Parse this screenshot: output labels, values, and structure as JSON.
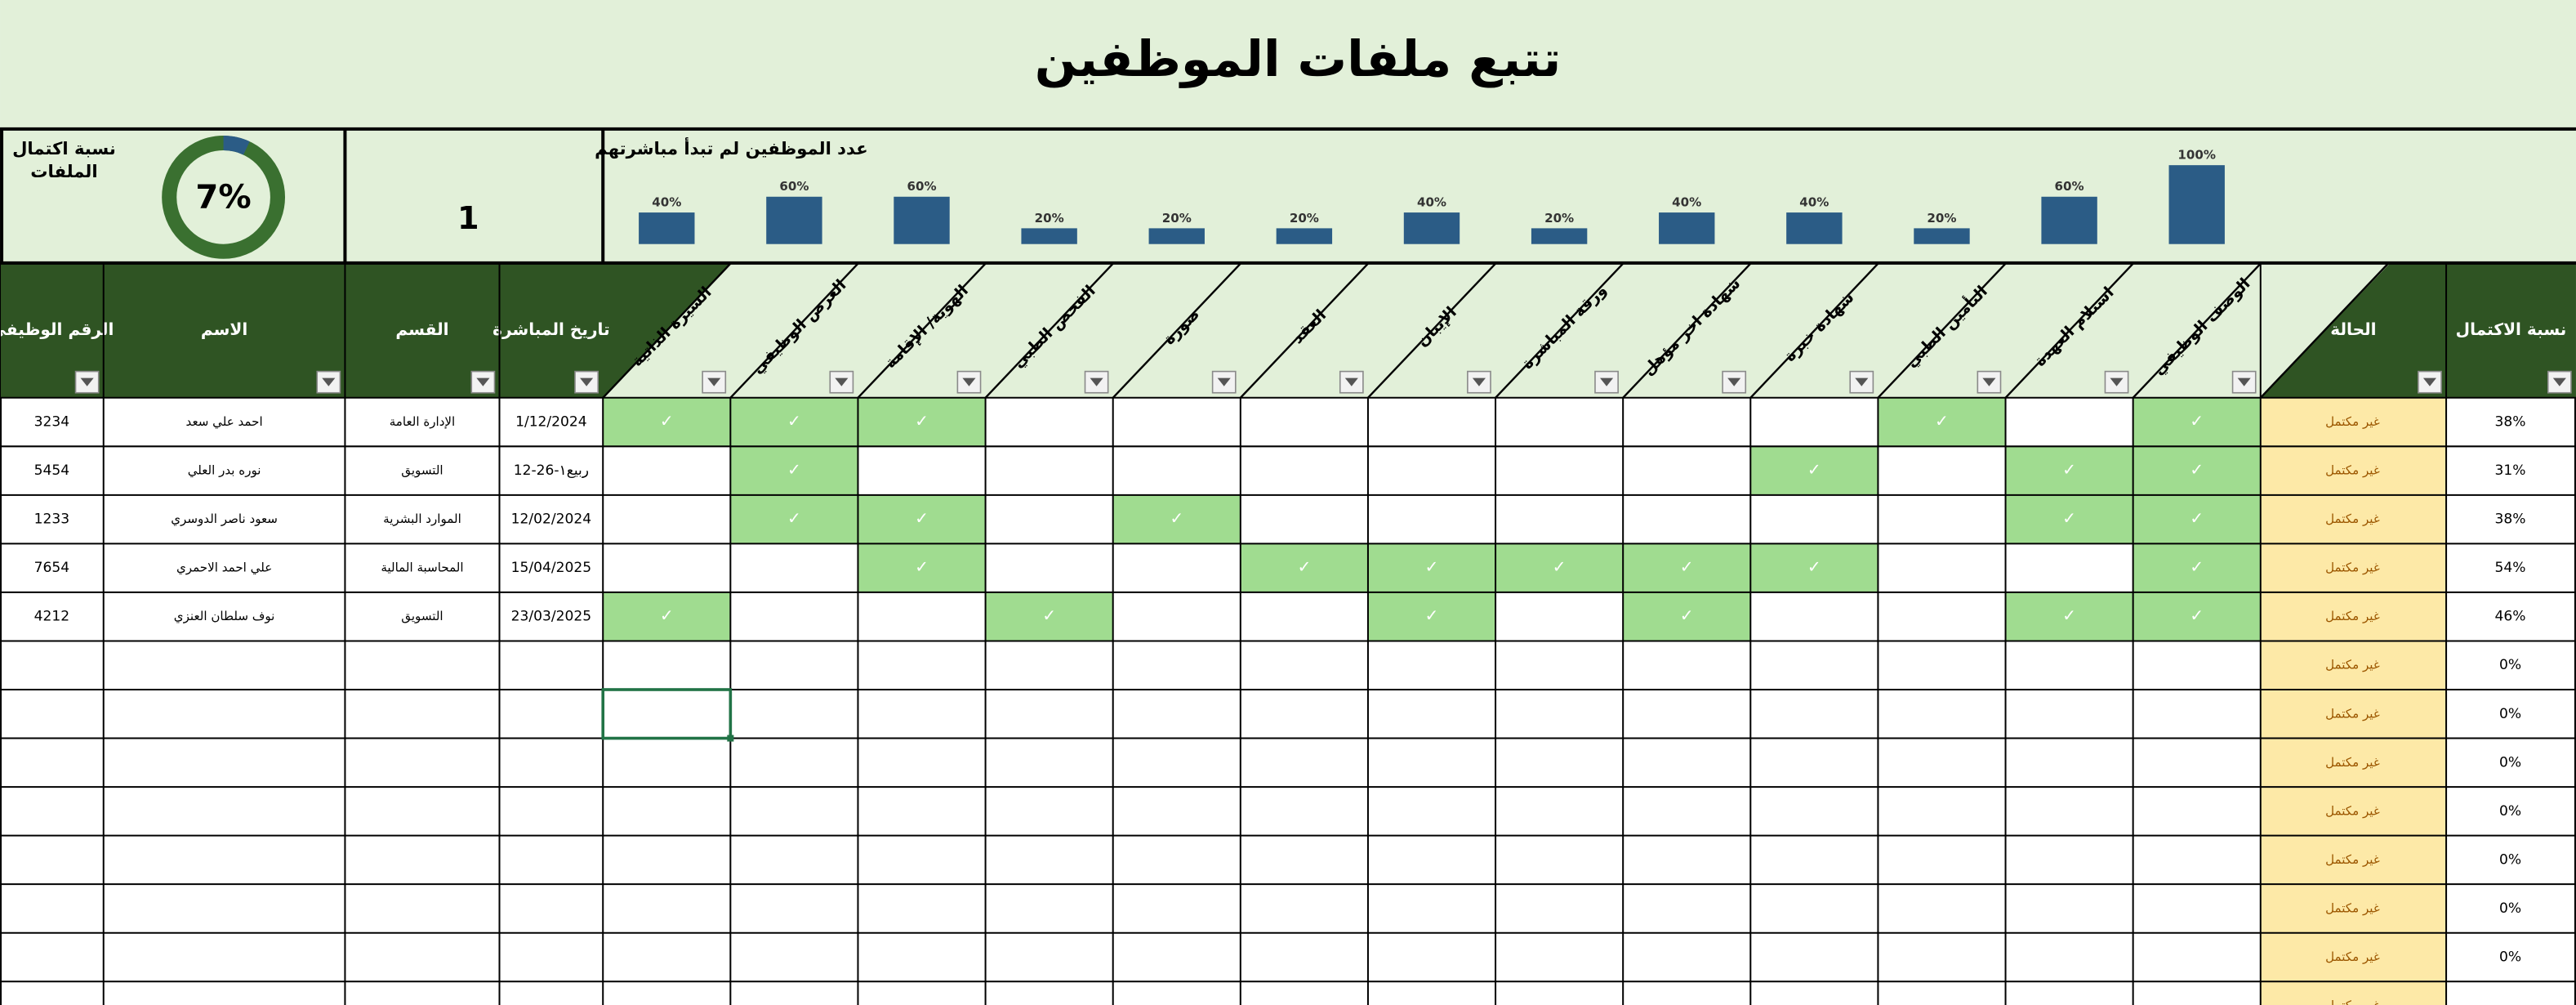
{
  "header": {
    "title": "تتبع ملفات الموظفين"
  },
  "dashboard": {
    "completion_title": "نسبة اكتمال الملفات",
    "completion": {
      "value": 7,
      "label": "7%"
    },
    "not_started_title": "عدد الموظفين لم تبدأ مباشرتهم",
    "not_started_count": "1",
    "column_stats": {
      "values": [
        40,
        60,
        60,
        20,
        20,
        20,
        40,
        20,
        40,
        40,
        20,
        60,
        100
      ],
      "value_labels": [
        "40%",
        "60%",
        "60%",
        "20%",
        "20%",
        "20%",
        "40%",
        "20%",
        "40%",
        "40%",
        "20%",
        "60%",
        "100%"
      ]
    }
  },
  "table": {
    "columns": {
      "employee_id": "الرقم الوظيفي",
      "name": "الاسم",
      "department": "القسم",
      "start_date": "تاريخ المباشرة",
      "status": "الحالة",
      "completion": "نسبة الاكتمال"
    },
    "doc_columns": [
      "السيرة الذاتية",
      "العرض الوظيفي",
      "الهوية/ الإقامة",
      "الفحص الطبي",
      "صورة",
      "العقد",
      "الإيبان",
      "ورقة المباشرة",
      "شهادة اخر مؤهل",
      "شهادة خبرة",
      "التأمين الطبي",
      "استلام العهدة",
      "الوصف الوظيفي"
    ],
    "rows": [
      {
        "employee_id": "3234",
        "name": "احمد علي سعد",
        "department": "الإدارة العامة",
        "start_date": "1/12/2024",
        "docs": [
          "✓",
          "✓",
          "✓",
          null,
          null,
          null,
          null,
          null,
          null,
          null,
          "✓",
          null,
          "✓"
        ],
        "status": "غير مكتمل",
        "completion": "38%"
      },
      {
        "employee_id": "5454",
        "name": "نوره بدر العلي",
        "department": "التسويق",
        "start_date": "12-ربيع١-26",
        "docs": [
          null,
          "✓",
          null,
          null,
          null,
          null,
          null,
          null,
          null,
          "✓",
          null,
          "✓",
          "✓"
        ],
        "status": "غير مكتمل",
        "completion": "31%"
      },
      {
        "employee_id": "1233",
        "name": "سعود ناصر الدوسري",
        "department": "الموارد البشرية",
        "start_date": "12/02/2024",
        "docs": [
          null,
          "✓",
          "✓",
          null,
          "✓",
          null,
          null,
          null,
          null,
          null,
          null,
          "✓",
          "✓"
        ],
        "status": "غير مكتمل",
        "completion": "38%"
      },
      {
        "employee_id": "7654",
        "name": "علي احمد الاحمري",
        "department": "المحاسبة المالية",
        "start_date": "15/04/2025",
        "docs": [
          null,
          null,
          "✓",
          null,
          null,
          "✓",
          "✓",
          "✓",
          "✓",
          "✓",
          null,
          null,
          "✓"
        ],
        "status": "غير مكتمل",
        "completion": "54%"
      },
      {
        "employee_id": "4212",
        "name": "نوف سلطان العنزي",
        "department": "التسويق",
        "start_date": "23/03/2025",
        "docs": [
          "✓",
          null,
          null,
          "✓",
          null,
          null,
          "✓",
          null,
          "✓",
          null,
          null,
          "✓",
          "✓"
        ],
        "status": "غير مكتمل",
        "completion": "46%"
      },
      {
        "status": "غير مكتمل",
        "completion": "0%"
      },
      {
        "status": "غير مكتمل",
        "completion": "0%"
      },
      {
        "status": "غير مكتمل",
        "completion": "0%"
      },
      {
        "status": "غير مكتمل",
        "completion": "0%"
      },
      {
        "status": "غير مكتمل",
        "completion": "0%"
      },
      {
        "status": "غير مكتمل",
        "completion": "0%"
      },
      {
        "status": "غير مكتمل",
        "completion": "0%"
      },
      {
        "status": "غير مكتمل"
      }
    ]
  }
}
